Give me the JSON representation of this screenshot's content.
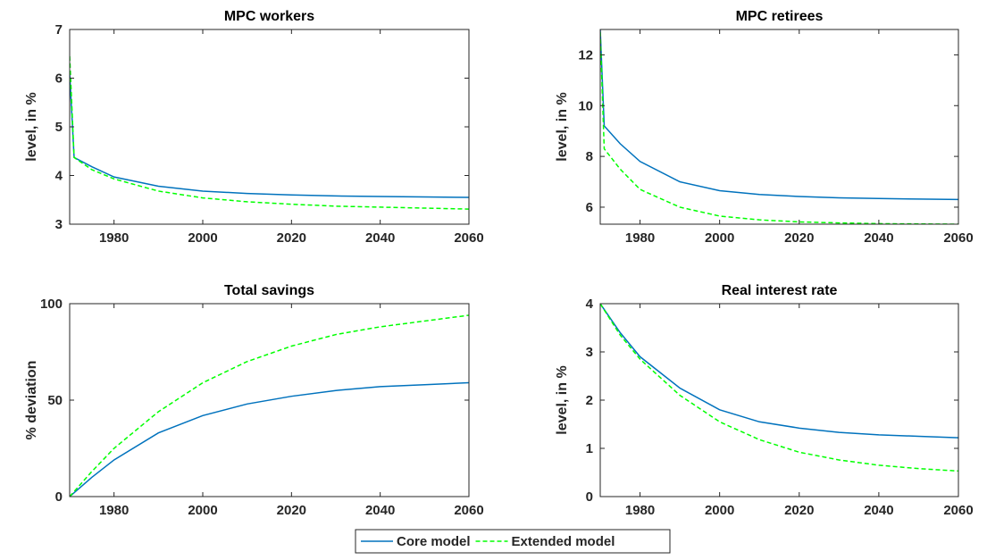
{
  "chart_data": [
    {
      "type": "line",
      "title": "MPC workers",
      "ylabel": "level, in %",
      "x": [
        1970,
        1971,
        1975,
        1980,
        1990,
        2000,
        2010,
        2020,
        2030,
        2040,
        2050,
        2060
      ],
      "series": [
        {
          "name": "Core model",
          "color": "#0072BD",
          "linestyle": "solid",
          "values": [
            6.1,
            4.37,
            4.18,
            3.97,
            3.78,
            3.68,
            3.63,
            3.6,
            3.58,
            3.57,
            3.56,
            3.55
          ]
        },
        {
          "name": "Extended model",
          "color": "#00FF00",
          "linestyle": "dashed",
          "values": [
            6.45,
            4.37,
            4.12,
            3.93,
            3.68,
            3.54,
            3.46,
            3.41,
            3.37,
            3.35,
            3.33,
            3.31
          ]
        }
      ],
      "xlim": [
        1970,
        2060
      ],
      "xticks": [
        1980,
        2000,
        2020,
        2040,
        2060
      ],
      "ylim": [
        3,
        7
      ],
      "yticks": [
        3,
        4,
        5,
        6,
        7
      ]
    },
    {
      "type": "line",
      "title": "MPC retirees",
      "ylabel": "level, in %",
      "x": [
        1970,
        1971,
        1975,
        1980,
        1990,
        2000,
        2010,
        2020,
        2030,
        2040,
        2050,
        2060
      ],
      "series": [
        {
          "color": "#0072BD",
          "linestyle": "solid",
          "values": [
            13,
            9.2,
            8.5,
            7.8,
            7.0,
            6.65,
            6.5,
            6.42,
            6.37,
            6.34,
            6.32,
            6.3
          ]
        },
        {
          "color": "#00FF00",
          "linestyle": "dashed",
          "values": [
            12.9,
            8.3,
            7.5,
            6.7,
            6.0,
            5.65,
            5.5,
            5.42,
            5.38,
            5.35,
            5.34,
            5.33
          ]
        }
      ],
      "xlim": [
        1970,
        2060
      ],
      "xticks": [
        1980,
        2000,
        2020,
        2040,
        2060
      ],
      "ylim": [
        5.33,
        13
      ],
      "yticks": [
        6,
        8,
        10,
        12
      ]
    },
    {
      "type": "line",
      "title": "Total savings",
      "ylabel": "% deviation",
      "x": [
        1970,
        1975,
        1980,
        1990,
        2000,
        2010,
        2020,
        2030,
        2040,
        2050,
        2060
      ],
      "series": [
        {
          "color": "#0072BD",
          "linestyle": "solid",
          "values": [
            0,
            10,
            19,
            33,
            42,
            48,
            52,
            55,
            57,
            58,
            59
          ]
        },
        {
          "color": "#00FF00",
          "linestyle": "dashed",
          "values": [
            0,
            13,
            25,
            44,
            59,
            70,
            78,
            84,
            88,
            91,
            94
          ]
        }
      ],
      "xlim": [
        1970,
        2060
      ],
      "xticks": [
        1980,
        2000,
        2020,
        2040,
        2060
      ],
      "ylim": [
        0,
        100
      ],
      "yticks": [
        0,
        50,
        100
      ]
    },
    {
      "type": "line",
      "title": "Real interest rate",
      "ylabel": "level, in %",
      "x": [
        1970,
        1975,
        1980,
        1990,
        2000,
        2010,
        2020,
        2030,
        2040,
        2050,
        2060
      ],
      "series": [
        {
          "color": "#0072BD",
          "linestyle": "solid",
          "values": [
            4.0,
            3.4,
            2.9,
            2.25,
            1.8,
            1.55,
            1.42,
            1.33,
            1.28,
            1.25,
            1.22
          ]
        },
        {
          "color": "#00FF00",
          "linestyle": "dashed",
          "values": [
            4.0,
            3.35,
            2.85,
            2.1,
            1.55,
            1.18,
            0.92,
            0.76,
            0.65,
            0.58,
            0.53
          ]
        }
      ],
      "xlim": [
        1970,
        2060
      ],
      "xticks": [
        1980,
        2000,
        2020,
        2040,
        2060
      ],
      "ylim": [
        0,
        4
      ],
      "yticks": [
        0,
        1,
        2,
        3,
        4
      ]
    }
  ]
}
